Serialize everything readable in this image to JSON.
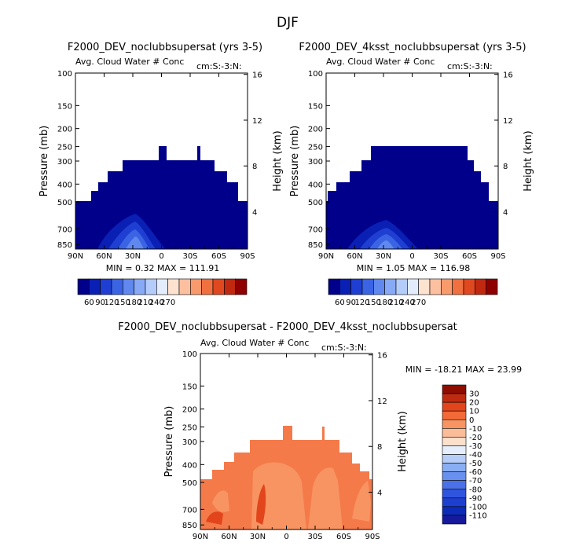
{
  "page_title": "DJF",
  "colors": {
    "cool": [
      "#00008b",
      "#0a1fb4",
      "#1e3fd2",
      "#3a64e4",
      "#6088ee",
      "#88aaf6",
      "#b4ccfa",
      "#e2ecfc"
    ],
    "warm": [
      "#fde2cf",
      "#fcc0a0",
      "#f89a6c",
      "#f07040",
      "#e04820",
      "#c02810",
      "#8e0000"
    ],
    "diff_scale": [
      "#16199c",
      "#0b2bb8",
      "#1d3fd0",
      "#2f55de",
      "#4a71e8",
      "#6890ef",
      "#8aaef4",
      "#b6cdf8",
      "#e6eefb",
      "#fde0cc",
      "#fbbc98",
      "#f89462",
      "#f26a38",
      "#e2451c",
      "#bf2b10",
      "#8e0d00"
    ]
  },
  "chart_data": [
    {
      "type": "heatmap",
      "title": "F2000_DEV_noclubbsupersat (yrs 3-5)",
      "subtitle": "Avg. Cloud Water # Conc",
      "right_note": "cm:S:-3:N:",
      "xlabel": "",
      "ylabel": "Pressure (mb)",
      "y2label": "Height (km)",
      "x_ticks": [
        "90N",
        "60N",
        "30N",
        "0",
        "30S",
        "60S",
        "90S"
      ],
      "y_ticks": [
        "100",
        "150",
        "200",
        "250",
        "300",
        "400",
        "500",
        "700",
        "850"
      ],
      "y2_ticks": [
        "16",
        "12",
        "8",
        "4"
      ],
      "stats": "MIN =   0.32   MAX = 111.91",
      "min": 0.32,
      "max": 111.91,
      "colorbar_labels": [
        "60",
        "90",
        "120",
        "150",
        "180",
        "210",
        "240",
        "270"
      ]
    },
    {
      "type": "heatmap",
      "title": "F2000_DEV_4ksst_noclubbsupersat (yrs 3-5)",
      "subtitle": "Avg. Cloud Water # Conc",
      "right_note": "cm:S:-3:N:",
      "xlabel": "",
      "ylabel": "Pressure (mb)",
      "y2label": "Height (km)",
      "x_ticks": [
        "90N",
        "60N",
        "30N",
        "0",
        "30S",
        "60S",
        "90S"
      ],
      "y_ticks": [
        "100",
        "150",
        "200",
        "250",
        "300",
        "400",
        "500",
        "700",
        "850"
      ],
      "y2_ticks": [
        "16",
        "12",
        "8",
        "4"
      ],
      "stats": "MIN =    1.05   MAX = 116.98",
      "min": 1.05,
      "max": 116.98,
      "colorbar_labels": [
        "60",
        "90",
        "120",
        "150",
        "180",
        "210",
        "240",
        "270"
      ]
    },
    {
      "type": "heatmap",
      "title": "F2000_DEV_noclubbsupersat - F2000_DEV_4ksst_noclubbsupersat",
      "subtitle": "Avg. Cloud Water # Conc",
      "right_note": "cm:S:-3:N:",
      "xlabel": "",
      "ylabel": "Pressure (mb)",
      "y2label": "Height (km)",
      "x_ticks": [
        "90N",
        "60N",
        "30N",
        "0",
        "30S",
        "60S",
        "90S"
      ],
      "y_ticks": [
        "100",
        "150",
        "200",
        "250",
        "300",
        "400",
        "500",
        "700",
        "850"
      ],
      "y2_ticks": [
        "16",
        "12",
        "8",
        "4"
      ],
      "stats": "MIN = -18.21   MAX = 23.99",
      "min": -18.21,
      "max": 23.99,
      "colorbar_labels": [
        "30",
        "20",
        "10",
        "0",
        "-10",
        "-20",
        "-30",
        "-40",
        "-50",
        "-60",
        "-70",
        "-80",
        "-90",
        "-100",
        "-110"
      ]
    }
  ]
}
